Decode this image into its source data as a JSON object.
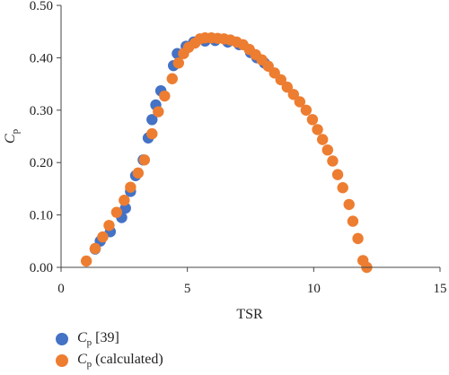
{
  "chart_data": {
    "type": "scatter",
    "xlabel": "TSR",
    "ylabel_base": "C",
    "ylabel_sub": "p",
    "xlim": [
      0,
      15
    ],
    "ylim": [
      0,
      0.5
    ],
    "xticks": [
      0,
      5,
      10,
      15
    ],
    "xtick_labels": [
      "0",
      "5",
      "10",
      "15"
    ],
    "yticks": [
      0,
      0.1,
      0.2,
      0.3,
      0.4,
      0.5
    ],
    "ytick_labels": [
      "0.00",
      "0.10",
      "0.20",
      "0.30",
      "0.40",
      "0.50"
    ],
    "grid": false,
    "legend_position": "bottom-left",
    "series": [
      {
        "name": "Cp [39]",
        "legend_base": "C",
        "legend_sub": "p",
        "legend_suffix": " [39]",
        "color": "#4472C4",
        "points": [
          [
            1.35,
            0.035
          ],
          [
            1.55,
            0.05
          ],
          [
            1.95,
            0.068
          ],
          [
            2.4,
            0.095
          ],
          [
            2.55,
            0.113
          ],
          [
            2.75,
            0.145
          ],
          [
            2.95,
            0.175
          ],
          [
            3.25,
            0.205
          ],
          [
            3.45,
            0.247
          ],
          [
            3.6,
            0.282
          ],
          [
            3.75,
            0.31
          ],
          [
            3.95,
            0.337
          ],
          [
            4.45,
            0.385
          ],
          [
            4.6,
            0.408
          ],
          [
            4.95,
            0.422
          ],
          [
            5.25,
            0.43
          ],
          [
            5.7,
            0.432
          ],
          [
            6.1,
            0.433
          ],
          [
            6.6,
            0.43
          ],
          [
            7.05,
            0.425
          ],
          [
            7.5,
            0.41
          ],
          [
            7.75,
            0.4
          ],
          [
            8.05,
            0.39
          ]
        ]
      },
      {
        "name": "Cp (calculated)",
        "legend_base": "C",
        "legend_sub": "p",
        "legend_suffix": " (calculated)",
        "color": "#ED7D31",
        "points": [
          [
            1.0,
            0.012
          ],
          [
            1.35,
            0.036
          ],
          [
            1.65,
            0.058
          ],
          [
            1.9,
            0.08
          ],
          [
            2.2,
            0.105
          ],
          [
            2.5,
            0.128
          ],
          [
            2.75,
            0.153
          ],
          [
            3.05,
            0.18
          ],
          [
            3.3,
            0.205
          ],
          [
            3.6,
            0.255
          ],
          [
            3.85,
            0.297
          ],
          [
            4.1,
            0.327
          ],
          [
            4.4,
            0.36
          ],
          [
            4.65,
            0.39
          ],
          [
            4.85,
            0.408
          ],
          [
            5.05,
            0.42
          ],
          [
            5.3,
            0.428
          ],
          [
            5.5,
            0.436
          ],
          [
            5.7,
            0.438
          ],
          [
            5.95,
            0.438
          ],
          [
            6.2,
            0.437
          ],
          [
            6.45,
            0.436
          ],
          [
            6.7,
            0.434
          ],
          [
            6.95,
            0.43
          ],
          [
            7.2,
            0.425
          ],
          [
            7.45,
            0.416
          ],
          [
            7.7,
            0.406
          ],
          [
            7.95,
            0.396
          ],
          [
            8.2,
            0.384
          ],
          [
            8.45,
            0.371
          ],
          [
            8.7,
            0.358
          ],
          [
            8.95,
            0.344
          ],
          [
            9.2,
            0.33
          ],
          [
            9.45,
            0.316
          ],
          [
            9.7,
            0.3
          ],
          [
            9.95,
            0.282
          ],
          [
            10.15,
            0.263
          ],
          [
            10.35,
            0.244
          ],
          [
            10.55,
            0.224
          ],
          [
            10.75,
            0.203
          ],
          [
            10.95,
            0.177
          ],
          [
            11.15,
            0.152
          ],
          [
            11.4,
            0.12
          ],
          [
            11.55,
            0.088
          ],
          [
            11.75,
            0.055
          ],
          [
            11.95,
            0.013
          ],
          [
            12.1,
            0.0
          ]
        ]
      }
    ]
  }
}
